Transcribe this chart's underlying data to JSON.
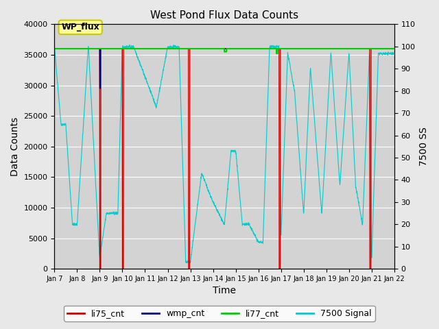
{
  "title": "West Pond Flux Data Counts",
  "xlabel": "Time",
  "ylabel_left": "Data Counts",
  "ylabel_right": "7500 SS",
  "annotation": "WP_flux",
  "ylim_left": [
    0,
    40000
  ],
  "ylim_right": [
    0,
    110
  ],
  "yticks_left": [
    0,
    5000,
    10000,
    15000,
    20000,
    25000,
    30000,
    35000,
    40000
  ],
  "yticks_right": [
    0,
    10,
    20,
    30,
    40,
    50,
    60,
    70,
    80,
    90,
    100,
    110
  ],
  "xtick_labels": [
    "Jan 7",
    "Jan 8",
    "Jan 9",
    "Jan 10",
    "Jan 11",
    "Jan 12",
    "Jan 13",
    "Jan 14",
    "Jan 15",
    "Jan 16",
    "Jan 17",
    "Jan 18",
    "Jan 19",
    "Jan 20",
    "Jan 21",
    "Jan 22"
  ],
  "bg_color": "#e8e8e8",
  "plot_bg_color": "#d3d3d3",
  "series_colors": {
    "li75_cnt": "#cc0000",
    "wmp_cnt": "#000080",
    "li77_cnt": "#00cc00",
    "signal": "#00cccc"
  },
  "legend_labels": [
    "li75_cnt",
    "wmp_cnt",
    "li77_cnt",
    "7500 Signal"
  ],
  "legend_colors": [
    "#cc0000",
    "#000080",
    "#00cc00",
    "#00cccc"
  ]
}
